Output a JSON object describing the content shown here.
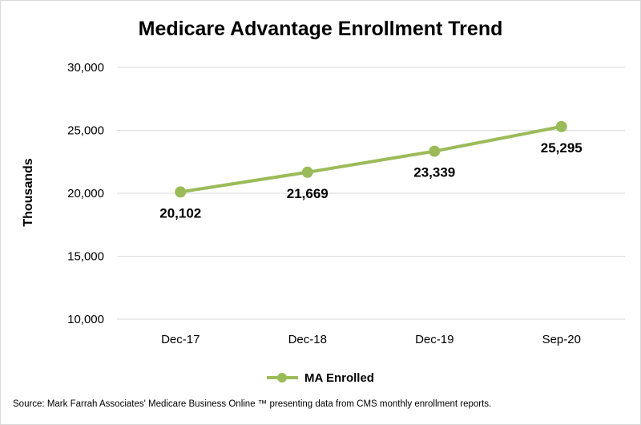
{
  "chart_data": {
    "type": "line",
    "title": "Medicare Advantage Enrollment Trend",
    "xlabel": "",
    "ylabel": "Thousands",
    "categories": [
      "Dec-17",
      "Dec-18",
      "Dec-19",
      "Sep-20"
    ],
    "series": [
      {
        "name": "MA Enrolled",
        "values": [
          20102,
          21669,
          23339,
          25295
        ],
        "labels": [
          "20,102",
          "21,669",
          "23,339",
          "25,295"
        ],
        "color": "#9bbb59"
      }
    ],
    "ylim": [
      10000,
      30000
    ],
    "yticks": [
      10000,
      15000,
      20000,
      25000,
      30000
    ],
    "ytick_labels": [
      "10,000",
      "15,000",
      "20,000",
      "25,000",
      "30,000"
    ],
    "grid": true,
    "legend": "bottom",
    "source": "Source: Mark Farrah Associates' Medicare Business Online ™ presenting data from CMS monthly enrollment reports."
  }
}
